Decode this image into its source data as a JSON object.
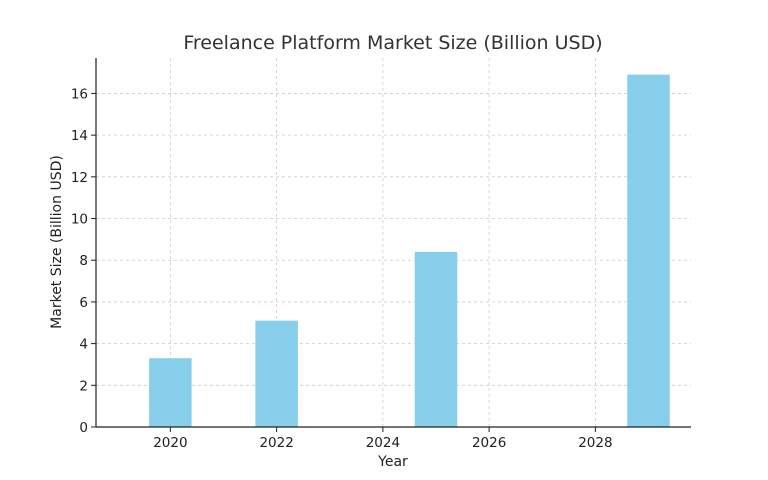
{
  "chart_data": {
    "type": "bar",
    "title": "Freelance Platform Market Size (Billion USD)",
    "xlabel": "Year",
    "ylabel": "Market Size (Billion USD)",
    "x": [
      2020,
      2022,
      2025,
      2029
    ],
    "values": [
      3.3,
      5.1,
      8.4,
      16.9
    ],
    "bar_width_years": 0.8,
    "xlim": [
      2018.6,
      2029.8
    ],
    "ylim": [
      0,
      17.7
    ],
    "xticks": [
      2020,
      2022,
      2024,
      2026,
      2028
    ],
    "yticks": [
      0,
      2,
      4,
      6,
      8,
      10,
      12,
      14,
      16
    ],
    "grid": true,
    "bar_color": "#87ceeb"
  }
}
